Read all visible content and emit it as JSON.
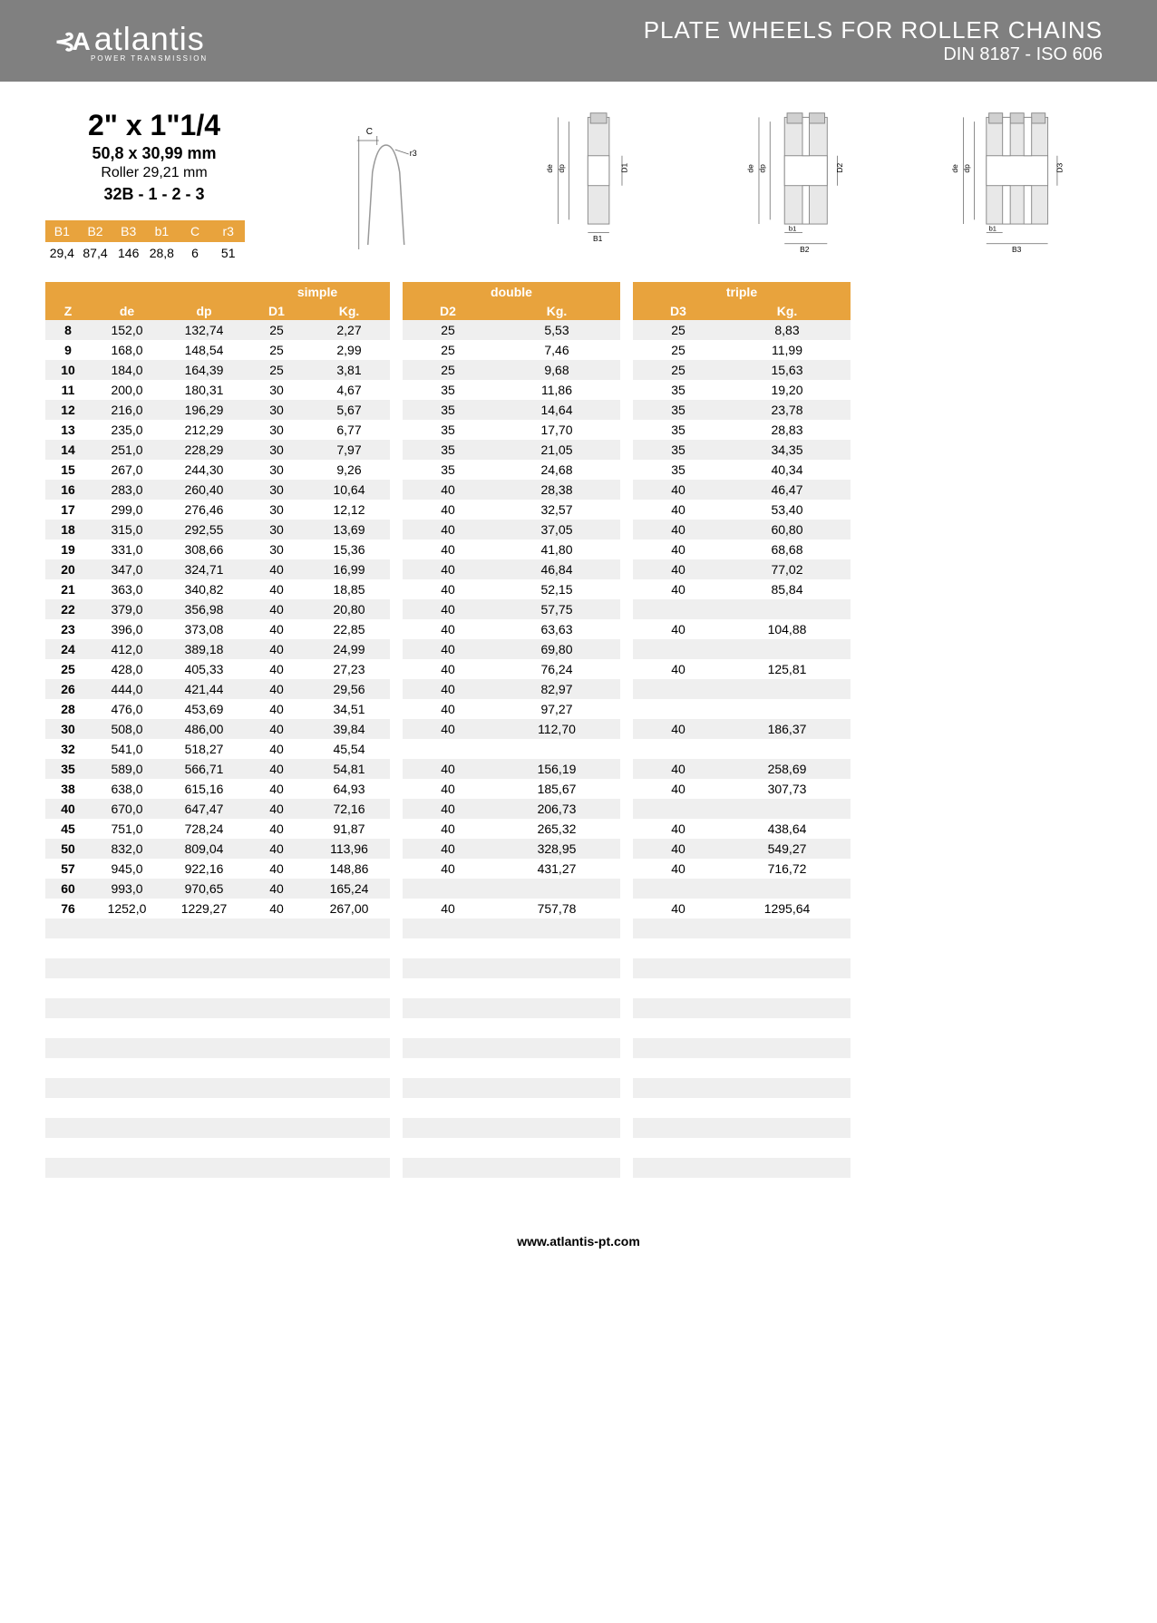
{
  "brand": {
    "name": "atlantis",
    "tagline": "POWER TRANSMISSION"
  },
  "header": {
    "title": "PLATE WHEELS FOR ROLLER CHAINS",
    "subtitle": "DIN 8187 - ISO 606"
  },
  "spec": {
    "size": "2\" x 1\"1/4",
    "mm": "50,8 x 30,99 mm",
    "roller": "Roller 29,21 mm",
    "code": "32B - 1 - 2 - 3"
  },
  "dim_headers": [
    "B1",
    "B2",
    "B3",
    "b1",
    "C",
    "r3"
  ],
  "dim_values": [
    "29,4",
    "87,4",
    "146",
    "28,8",
    "6",
    "51"
  ],
  "diag_labels": {
    "c": "C",
    "r3": "r3",
    "de": "de",
    "dp": "dp",
    "d1": "D1",
    "d2": "D2",
    "d3": "D3",
    "b1": "b1",
    "B1": "B1",
    "B2": "B2",
    "B3": "B3"
  },
  "columns": {
    "z": "Z",
    "de": "de",
    "dp": "dp",
    "simple": "simple",
    "double": "double",
    "triple": "triple",
    "d1": "D1",
    "d2": "D2",
    "d3": "D3",
    "kg": "Kg."
  },
  "rows": [
    {
      "z": "8",
      "de": "152,0",
      "dp": "132,74",
      "d1": "25",
      "kg1": "2,27",
      "d2": "25",
      "kg2": "5,53",
      "d3": "25",
      "kg3": "8,83"
    },
    {
      "z": "9",
      "de": "168,0",
      "dp": "148,54",
      "d1": "25",
      "kg1": "2,99",
      "d2": "25",
      "kg2": "7,46",
      "d3": "25",
      "kg3": "11,99"
    },
    {
      "z": "10",
      "de": "184,0",
      "dp": "164,39",
      "d1": "25",
      "kg1": "3,81",
      "d2": "25",
      "kg2": "9,68",
      "d3": "25",
      "kg3": "15,63"
    },
    {
      "z": "11",
      "de": "200,0",
      "dp": "180,31",
      "d1": "30",
      "kg1": "4,67",
      "d2": "35",
      "kg2": "11,86",
      "d3": "35",
      "kg3": "19,20"
    },
    {
      "z": "12",
      "de": "216,0",
      "dp": "196,29",
      "d1": "30",
      "kg1": "5,67",
      "d2": "35",
      "kg2": "14,64",
      "d3": "35",
      "kg3": "23,78"
    },
    {
      "z": "13",
      "de": "235,0",
      "dp": "212,29",
      "d1": "30",
      "kg1": "6,77",
      "d2": "35",
      "kg2": "17,70",
      "d3": "35",
      "kg3": "28,83"
    },
    {
      "z": "14",
      "de": "251,0",
      "dp": "228,29",
      "d1": "30",
      "kg1": "7,97",
      "d2": "35",
      "kg2": "21,05",
      "d3": "35",
      "kg3": "34,35"
    },
    {
      "z": "15",
      "de": "267,0",
      "dp": "244,30",
      "d1": "30",
      "kg1": "9,26",
      "d2": "35",
      "kg2": "24,68",
      "d3": "35",
      "kg3": "40,34"
    },
    {
      "z": "16",
      "de": "283,0",
      "dp": "260,40",
      "d1": "30",
      "kg1": "10,64",
      "d2": "40",
      "kg2": "28,38",
      "d3": "40",
      "kg3": "46,47"
    },
    {
      "z": "17",
      "de": "299,0",
      "dp": "276,46",
      "d1": "30",
      "kg1": "12,12",
      "d2": "40",
      "kg2": "32,57",
      "d3": "40",
      "kg3": "53,40"
    },
    {
      "z": "18",
      "de": "315,0",
      "dp": "292,55",
      "d1": "30",
      "kg1": "13,69",
      "d2": "40",
      "kg2": "37,05",
      "d3": "40",
      "kg3": "60,80"
    },
    {
      "z": "19",
      "de": "331,0",
      "dp": "308,66",
      "d1": "30",
      "kg1": "15,36",
      "d2": "40",
      "kg2": "41,80",
      "d3": "40",
      "kg3": "68,68"
    },
    {
      "z": "20",
      "de": "347,0",
      "dp": "324,71",
      "d1": "40",
      "kg1": "16,99",
      "d2": "40",
      "kg2": "46,84",
      "d3": "40",
      "kg3": "77,02"
    },
    {
      "z": "21",
      "de": "363,0",
      "dp": "340,82",
      "d1": "40",
      "kg1": "18,85",
      "d2": "40",
      "kg2": "52,15",
      "d3": "40",
      "kg3": "85,84"
    },
    {
      "z": "22",
      "de": "379,0",
      "dp": "356,98",
      "d1": "40",
      "kg1": "20,80",
      "d2": "40",
      "kg2": "57,75",
      "d3": "",
      "kg3": ""
    },
    {
      "z": "23",
      "de": "396,0",
      "dp": "373,08",
      "d1": "40",
      "kg1": "22,85",
      "d2": "40",
      "kg2": "63,63",
      "d3": "40",
      "kg3": "104,88"
    },
    {
      "z": "24",
      "de": "412,0",
      "dp": "389,18",
      "d1": "40",
      "kg1": "24,99",
      "d2": "40",
      "kg2": "69,80",
      "d3": "",
      "kg3": ""
    },
    {
      "z": "25",
      "de": "428,0",
      "dp": "405,33",
      "d1": "40",
      "kg1": "27,23",
      "d2": "40",
      "kg2": "76,24",
      "d3": "40",
      "kg3": "125,81"
    },
    {
      "z": "26",
      "de": "444,0",
      "dp": "421,44",
      "d1": "40",
      "kg1": "29,56",
      "d2": "40",
      "kg2": "82,97",
      "d3": "",
      "kg3": ""
    },
    {
      "z": "28",
      "de": "476,0",
      "dp": "453,69",
      "d1": "40",
      "kg1": "34,51",
      "d2": "40",
      "kg2": "97,27",
      "d3": "",
      "kg3": ""
    },
    {
      "z": "30",
      "de": "508,0",
      "dp": "486,00",
      "d1": "40",
      "kg1": "39,84",
      "d2": "40",
      "kg2": "112,70",
      "d3": "40",
      "kg3": "186,37"
    },
    {
      "z": "32",
      "de": "541,0",
      "dp": "518,27",
      "d1": "40",
      "kg1": "45,54",
      "d2": "",
      "kg2": "",
      "d3": "",
      "kg3": ""
    },
    {
      "z": "35",
      "de": "589,0",
      "dp": "566,71",
      "d1": "40",
      "kg1": "54,81",
      "d2": "40",
      "kg2": "156,19",
      "d3": "40",
      "kg3": "258,69"
    },
    {
      "z": "38",
      "de": "638,0",
      "dp": "615,16",
      "d1": "40",
      "kg1": "64,93",
      "d2": "40",
      "kg2": "185,67",
      "d3": "40",
      "kg3": "307,73"
    },
    {
      "z": "40",
      "de": "670,0",
      "dp": "647,47",
      "d1": "40",
      "kg1": "72,16",
      "d2": "40",
      "kg2": "206,73",
      "d3": "",
      "kg3": ""
    },
    {
      "z": "45",
      "de": "751,0",
      "dp": "728,24",
      "d1": "40",
      "kg1": "91,87",
      "d2": "40",
      "kg2": "265,32",
      "d3": "40",
      "kg3": "438,64"
    },
    {
      "z": "50",
      "de": "832,0",
      "dp": "809,04",
      "d1": "40",
      "kg1": "113,96",
      "d2": "40",
      "kg2": "328,95",
      "d3": "40",
      "kg3": "549,27"
    },
    {
      "z": "57",
      "de": "945,0",
      "dp": "922,16",
      "d1": "40",
      "kg1": "148,86",
      "d2": "40",
      "kg2": "431,27",
      "d3": "40",
      "kg3": "716,72"
    },
    {
      "z": "60",
      "de": "993,0",
      "dp": "970,65",
      "d1": "40",
      "kg1": "165,24",
      "d2": "",
      "kg2": "",
      "d3": "",
      "kg3": ""
    },
    {
      "z": "76",
      "de": "1252,0",
      "dp": "1229,27",
      "d1": "40",
      "kg1": "267,00",
      "d2": "40",
      "kg2": "757,78",
      "d3": "40",
      "kg3": "1295,64"
    }
  ],
  "empty_rows": 14,
  "footer": "www.atlantis-pt.com",
  "colors": {
    "header_bg": "#808080",
    "accent": "#e8a33d",
    "row_alt": "#efefef"
  }
}
